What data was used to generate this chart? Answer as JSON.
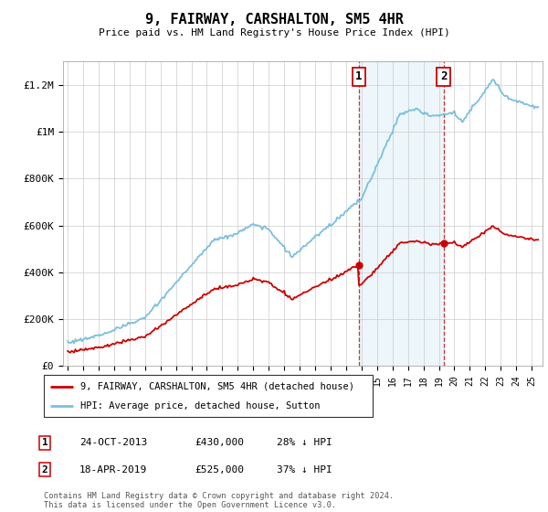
{
  "title": "9, FAIRWAY, CARSHALTON, SM5 4HR",
  "subtitle": "Price paid vs. HM Land Registry's House Price Index (HPI)",
  "ylabel_ticks": [
    "£0",
    "£200K",
    "£400K",
    "£600K",
    "£800K",
    "£1M",
    "£1.2M"
  ],
  "ytick_vals": [
    0,
    200000,
    400000,
    600000,
    800000,
    1000000,
    1200000
  ],
  "ylim": [
    0,
    1300000
  ],
  "xlim_start": 1994.7,
  "xlim_end": 2025.7,
  "hpi_color": "#7bbfde",
  "price_color": "#cc0000",
  "sale1_date": 2013.82,
  "sale1_price": 430000,
  "sale2_date": 2019.3,
  "sale2_price": 525000,
  "legend_house_label": "9, FAIRWAY, CARSHALTON, SM5 4HR (detached house)",
  "legend_hpi_label": "HPI: Average price, detached house, Sutton",
  "annotation1_label": "1",
  "annotation1_text": "24-OCT-2013",
  "annotation1_price": "£430,000",
  "annotation1_hpi": "28% ↓ HPI",
  "annotation2_label": "2",
  "annotation2_text": "18-APR-2019",
  "annotation2_price": "£525,000",
  "annotation2_hpi": "37% ↓ HPI",
  "footer": "Contains HM Land Registry data © Crown copyright and database right 2024.\nThis data is licensed under the Open Government Licence v3.0."
}
